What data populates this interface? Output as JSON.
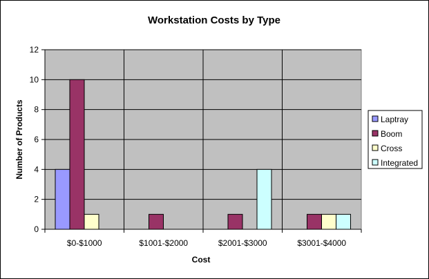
{
  "chart_data": {
    "type": "bar",
    "title": "Workstation Costs by Type",
    "xlabel": "Cost",
    "ylabel": "Number of Products",
    "categories": [
      "$0-$1000",
      "$1001-$2000",
      "$2001-$3000",
      "$3001-$4000"
    ],
    "series": [
      {
        "name": "Laptray",
        "color": "#9999ff",
        "values": [
          4,
          0,
          0,
          0
        ]
      },
      {
        "name": "Boom",
        "color": "#993366",
        "values": [
          10,
          1,
          1,
          1
        ]
      },
      {
        "name": "Cross",
        "color": "#ffffcc",
        "values": [
          1,
          0,
          0,
          1
        ]
      },
      {
        "name": "Integrated",
        "color": "#ccffff",
        "values": [
          0,
          0,
          4,
          1
        ]
      }
    ],
    "ylim": [
      0,
      12
    ],
    "yticks": [
      0,
      2,
      4,
      6,
      8,
      10,
      12
    ],
    "grid": true,
    "legend": "right",
    "plot_background": "#c0c0c0"
  }
}
